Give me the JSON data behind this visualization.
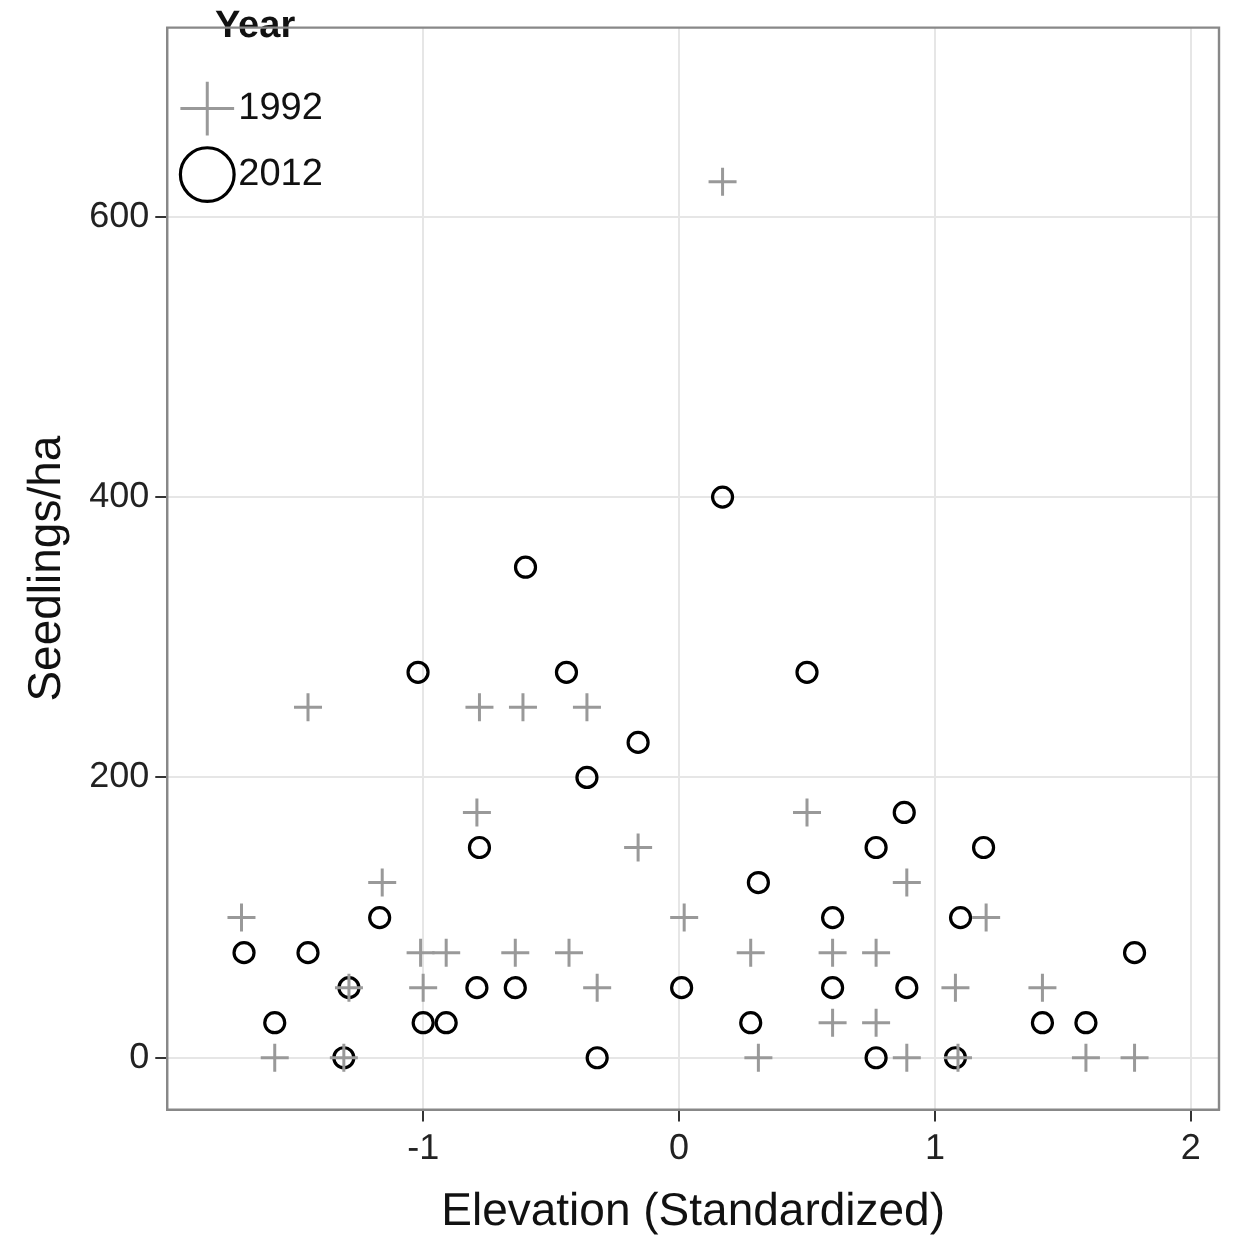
{
  "chart_data": {
    "type": "scatter",
    "xlabel": "Elevation (Standardized)",
    "ylabel": "Seedlings/ha",
    "legend_title": "Year",
    "legend": "top left",
    "grid": true,
    "xlim": [
      -2.0,
      2.11
    ],
    "ylim": [
      -37,
      735
    ],
    "xticks": [
      -1,
      0,
      1,
      2
    ],
    "yticks": [
      0,
      200,
      400,
      600
    ],
    "series": [
      {
        "name": "1992",
        "color": "#999999",
        "marker": "cross",
        "x": [
          -1.71,
          -1.58,
          -1.45,
          -1.29,
          -1.31,
          -1.16,
          -1.01,
          -0.91,
          -1.0,
          -0.78,
          -0.61,
          -0.36,
          -0.79,
          -0.64,
          -0.43,
          -0.32,
          -0.16,
          0.02,
          0.17,
          0.28,
          0.31,
          0.5,
          0.6,
          0.6,
          0.77,
          0.77,
          0.89,
          0.89,
          1.2,
          1.08,
          1.09,
          1.42,
          1.59,
          1.78
        ],
        "values": [
          100,
          0,
          250,
          50,
          0,
          125,
          75,
          75,
          50,
          250,
          250,
          250,
          175,
          75,
          75,
          50,
          150,
          100,
          625,
          75,
          0,
          175,
          75,
          25,
          75,
          25,
          125,
          0,
          100,
          50,
          0,
          50,
          0,
          0
        ]
      },
      {
        "name": "2012",
        "color": "#000000",
        "marker": "circle",
        "x": [
          -1.7,
          -1.58,
          -1.45,
          -1.29,
          -1.31,
          -1.17,
          -1.02,
          -1.0,
          -0.91,
          -0.79,
          -0.78,
          -0.64,
          -0.6,
          -0.44,
          -0.36,
          -0.16,
          -0.32,
          0.01,
          0.17,
          0.5,
          0.88,
          0.77,
          1.19,
          0.31,
          0.6,
          1.1,
          1.78,
          0.6,
          0.89,
          0.28,
          1.42,
          1.59,
          0.77,
          1.08
        ],
        "values": [
          75,
          25,
          75,
          50,
          0,
          100,
          275,
          25,
          25,
          50,
          150,
          50,
          350,
          275,
          200,
          225,
          0,
          50,
          400,
          275,
          175,
          150,
          150,
          125,
          100,
          100,
          75,
          50,
          50,
          25,
          25,
          25,
          0,
          0
        ]
      }
    ]
  }
}
